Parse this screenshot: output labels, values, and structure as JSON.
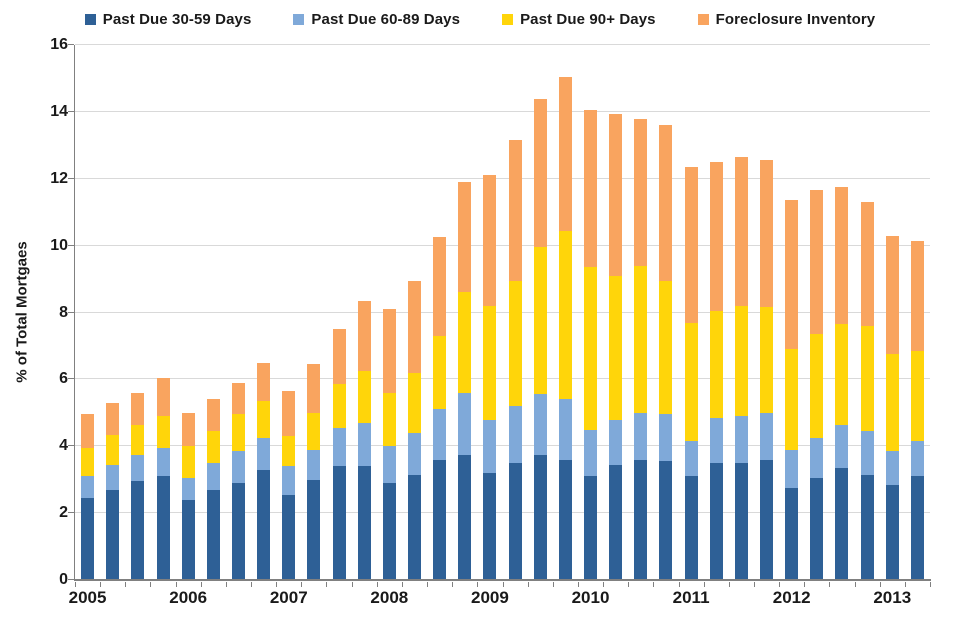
{
  "chart_data": {
    "type": "bar",
    "stacked": true,
    "title": "",
    "ylabel": "% of Total Mortgaes",
    "xlabel": "",
    "ylim": [
      0,
      16
    ],
    "ytick_step": 2,
    "grid": true,
    "legend_position": "top",
    "years": [
      "2005",
      "2006",
      "2007",
      "2008",
      "2009",
      "2010",
      "2011",
      "2012",
      "2013"
    ],
    "x": [
      "2005 Q1",
      "2005 Q2",
      "2005 Q3",
      "2005 Q4",
      "2006 Q1",
      "2006 Q2",
      "2006 Q3",
      "2006 Q4",
      "2007 Q1",
      "2007 Q2",
      "2007 Q3",
      "2007 Q4",
      "2008 Q1",
      "2008 Q2",
      "2008 Q3",
      "2008 Q4",
      "2009 Q1",
      "2009 Q2",
      "2009 Q3",
      "2009 Q4",
      "2010 Q1",
      "2010 Q2",
      "2010 Q3",
      "2010 Q4",
      "2011 Q1",
      "2011 Q2",
      "2011 Q3",
      "2011 Q4",
      "2012 Q1",
      "2012 Q2",
      "2012 Q3",
      "2012 Q4",
      "2013 Q1",
      "2013 Q2"
    ],
    "series": [
      {
        "name": "Past Due 30-59 Days",
        "color": "#2E6096",
        "values": [
          2.45,
          2.7,
          2.95,
          3.1,
          2.4,
          2.7,
          2.9,
          3.3,
          2.55,
          3.0,
          3.4,
          3.4,
          2.9,
          3.15,
          3.6,
          3.75,
          3.2,
          3.5,
          3.75,
          3.6,
          3.1,
          3.45,
          3.6,
          3.55,
          3.1,
          3.5,
          3.5,
          3.6,
          2.75,
          3.05,
          3.35,
          3.15,
          2.85,
          3.1
        ]
      },
      {
        "name": "Past Due 60-89 Days",
        "color": "#7FA9D9",
        "values": [
          0.65,
          0.75,
          0.8,
          0.85,
          0.65,
          0.8,
          0.95,
          0.95,
          0.85,
          0.9,
          1.15,
          1.3,
          1.1,
          1.25,
          1.5,
          1.85,
          1.6,
          1.7,
          1.8,
          1.8,
          1.4,
          1.35,
          1.4,
          1.4,
          1.05,
          1.35,
          1.4,
          1.4,
          1.15,
          1.2,
          1.3,
          1.3,
          1.0,
          1.05
        ]
      },
      {
        "name": "Past Due 90+ Days",
        "color": "#FFD50A",
        "values": [
          0.85,
          0.9,
          0.9,
          0.95,
          0.95,
          0.95,
          1.1,
          1.1,
          0.9,
          1.1,
          1.3,
          1.55,
          1.6,
          1.8,
          2.2,
          3.0,
          3.4,
          3.75,
          4.4,
          5.05,
          4.85,
          4.3,
          4.4,
          4.0,
          3.55,
          3.2,
          3.3,
          3.15,
          3.0,
          3.1,
          3.0,
          3.15,
          2.9,
          2.7
        ]
      },
      {
        "name": "Foreclosure Inventory",
        "color": "#F9A45F",
        "values": [
          1.0,
          0.95,
          0.95,
          1.15,
          1.0,
          0.95,
          0.95,
          1.15,
          1.35,
          1.45,
          1.65,
          2.1,
          2.5,
          2.75,
          2.95,
          3.3,
          3.9,
          4.2,
          4.45,
          4.6,
          4.7,
          4.85,
          4.4,
          4.65,
          4.65,
          4.45,
          4.45,
          4.4,
          4.45,
          4.3,
          4.1,
          3.7,
          3.55,
          3.3
        ]
      }
    ],
    "totals": [
      4.95,
      5.3,
      5.6,
      6.05,
      5.0,
      5.4,
      5.9,
      6.5,
      5.65,
      6.45,
      7.5,
      8.35,
      8.1,
      8.95,
      10.25,
      11.9,
      12.1,
      13.15,
      14.4,
      15.05,
      14.05,
      13.95,
      13.8,
      13.6,
      12.35,
      12.5,
      12.65,
      12.55,
      11.35,
      11.65,
      11.75,
      11.3,
      10.3,
      10.15
    ],
    "y_ticks": [
      "0",
      "2",
      "4",
      "6",
      "8",
      "10",
      "12",
      "14",
      "16"
    ]
  },
  "colors": {
    "gridline": "#d9d9d9",
    "axis": "#808080",
    "text": "#1a1a1a",
    "background": "#ffffff"
  }
}
